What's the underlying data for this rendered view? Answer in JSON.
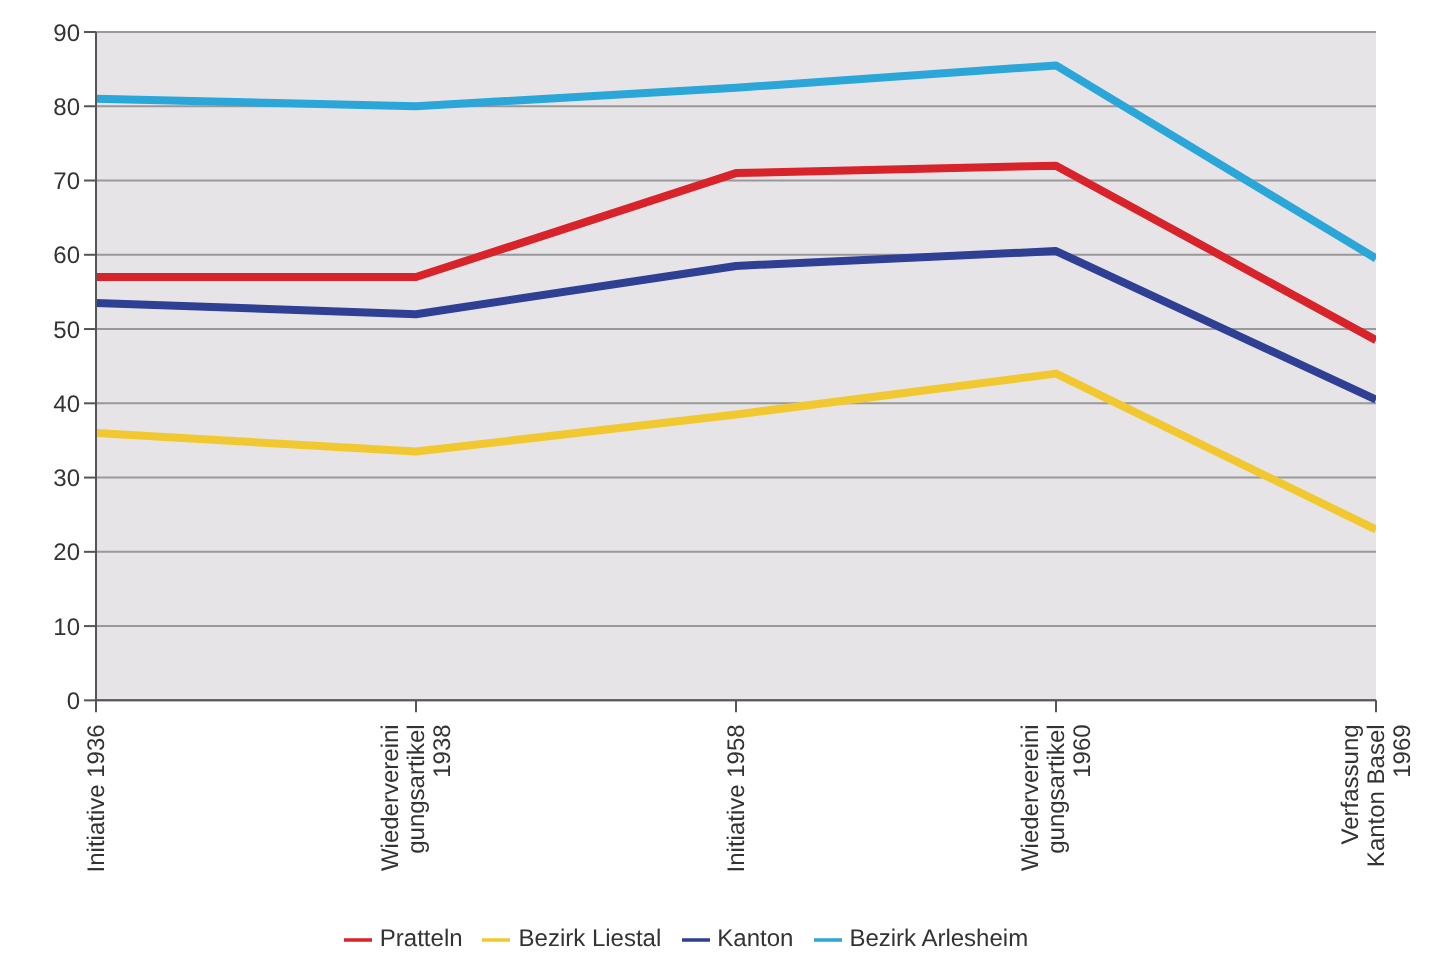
{
  "chart_data": {
    "type": "line",
    "categories": [
      "Initiative 1936",
      "Wiedervereinigungsartikel 1938",
      "Initiative 1958",
      "Wiedervereinigungsartikel 1960",
      "Verfassung Kanton Basel 1969"
    ],
    "series": [
      {
        "name": "Pratteln",
        "color": "#d8232a",
        "values": [
          57,
          57,
          71,
          72,
          48.5
        ]
      },
      {
        "name": "Bezirk Liestal",
        "color": "#f2c830",
        "values": [
          36,
          33.5,
          38.5,
          44,
          23
        ]
      },
      {
        "name": "Kanton",
        "color": "#2e3f94",
        "values": [
          53.5,
          52,
          58.5,
          60.5,
          40.5
        ]
      },
      {
        "name": "Bezirk Arlesheim",
        "color": "#2aa6d8",
        "values": [
          81,
          80,
          82.5,
          85.5,
          59.5
        ]
      }
    ],
    "ylim": [
      0,
      90
    ],
    "yticks": [
      0,
      10,
      20,
      30,
      40,
      50,
      60,
      70,
      80,
      90
    ],
    "grid": "y",
    "legend": "bottom",
    "marker": "none",
    "line_style": "solid"
  }
}
